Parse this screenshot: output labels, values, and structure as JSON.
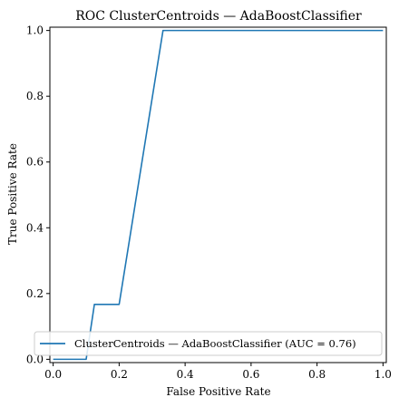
{
  "chart_data": {
    "type": "line",
    "title": "ROC ClusterCentroids — AdaBoostClassifier",
    "xlabel": "False Positive Rate",
    "ylabel": "True Positive Rate",
    "xlim": [
      -0.01,
      1.01
    ],
    "ylim": [
      -0.01,
      1.01
    ],
    "xticks": [
      0.0,
      0.2,
      0.4,
      0.6,
      0.8,
      1.0
    ],
    "yticks": [
      0.0,
      0.2,
      0.4,
      0.6,
      0.8,
      1.0
    ],
    "xtick_labels": [
      "0.0",
      "0.2",
      "0.4",
      "0.6",
      "0.8",
      "1.0"
    ],
    "ytick_labels": [
      "0.0",
      "0.2",
      "0.4",
      "0.6",
      "0.8",
      "1.0"
    ],
    "grid": false,
    "legend_position": "lower-right",
    "series": [
      {
        "name": "ClusterCentroids — AdaBoostClassifier (AUC = 0.76)",
        "color": "#1f77b4",
        "x": [
          0.0,
          0.0,
          0.1,
          0.125,
          0.125,
          0.2,
          0.333,
          0.333,
          1.0
        ],
        "y": [
          0.0,
          0.0,
          0.0,
          0.167,
          0.167,
          0.167,
          1.0,
          1.0,
          1.0
        ]
      }
    ]
  }
}
